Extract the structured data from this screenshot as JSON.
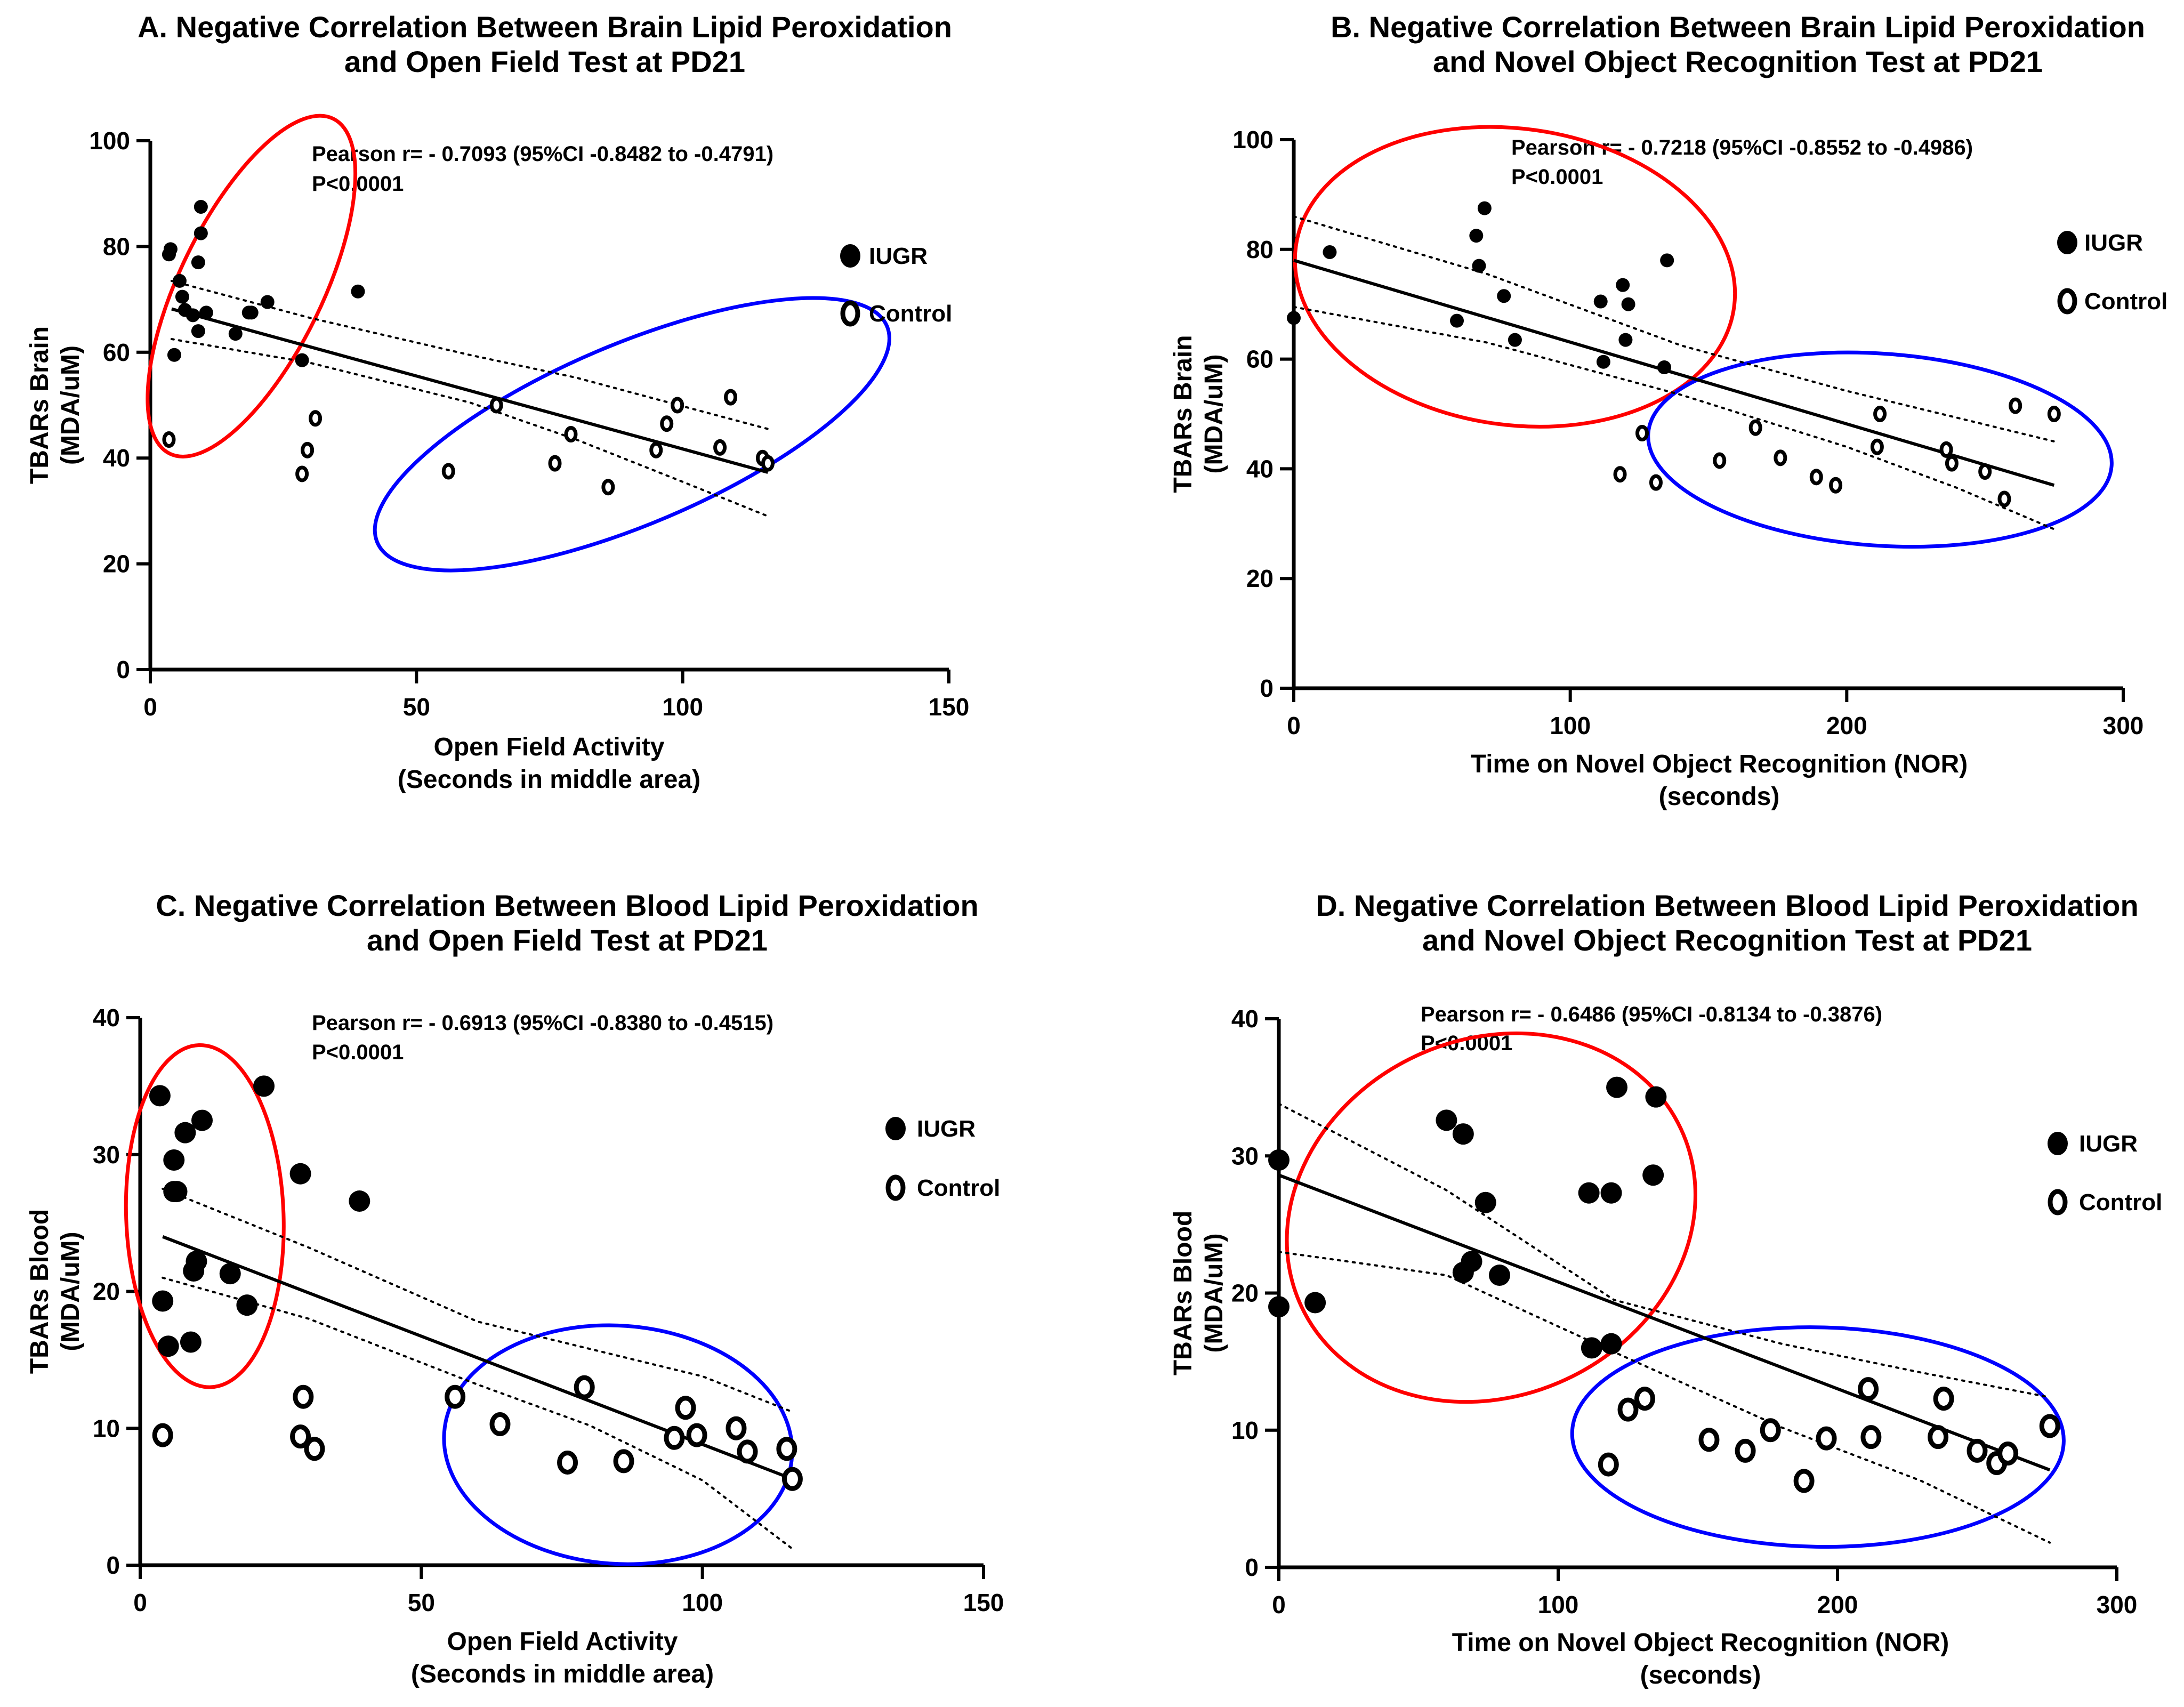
{
  "legend": {
    "iugr_label": "IUGR",
    "control_label": "Control"
  },
  "chart_data": [
    {
      "type": "scatter",
      "panel": "A",
      "title": [
        "A. Negative Correlation Between Brain Lipid Peroxidation",
        "and Open Field Test at PD21"
      ],
      "stats": [
        "Pearson r= - 0.7093 (95%CI -0.8482 to -0.4791)",
        "P<0.0001"
      ],
      "xlabel": [
        "Open Field Activity",
        "(Seconds in middle area)"
      ],
      "ylabel": [
        "TBARs Brain",
        "(MDA/uM)"
      ],
      "xlim": [
        0,
        150
      ],
      "ylim": [
        0,
        100
      ],
      "xticks": [
        0,
        50,
        100,
        150
      ],
      "yticks": [
        0,
        20,
        40,
        60,
        80,
        100
      ],
      "grid": false,
      "legend_position": "right",
      "series": [
        {
          "name": "IUGR",
          "marker": "filled",
          "size": "small",
          "points": [
            [
              3.5,
              78.5
            ],
            [
              3.8,
              79.5
            ],
            [
              4.5,
              59.5
            ],
            [
              5.5,
              73.5
            ],
            [
              6,
              70.5
            ],
            [
              6.5,
              68
            ],
            [
              8,
              67
            ],
            [
              9,
              77
            ],
            [
              9.5,
              87.5
            ],
            [
              9.5,
              82.5
            ],
            [
              9,
              64
            ],
            [
              10.5,
              67.5
            ],
            [
              16,
              63.5
            ],
            [
              18.5,
              67.5
            ],
            [
              19,
              67.5
            ],
            [
              22,
              69.5
            ],
            [
              28.5,
              58.5
            ],
            [
              39,
              71.5
            ]
          ]
        },
        {
          "name": "Control",
          "marker": "open",
          "size": "small",
          "points": [
            [
              3.5,
              43.5
            ],
            [
              28.5,
              37
            ],
            [
              29.5,
              41.5
            ],
            [
              31,
              47.5
            ],
            [
              56,
              37.5
            ],
            [
              65,
              50
            ],
            [
              76,
              39
            ],
            [
              79,
              44.5
            ],
            [
              86,
              34.5
            ],
            [
              95,
              41.5
            ],
            [
              97,
              46.5
            ],
            [
              99,
              50
            ],
            [
              107,
              42
            ],
            [
              109,
              51.5
            ],
            [
              115,
              40
            ],
            [
              116,
              39
            ]
          ]
        }
      ],
      "fit": {
        "x": [
          4,
          116
        ],
        "y": [
          68.2,
          37.3
        ]
      },
      "ci_upper": {
        "x": [
          4,
          30,
          60,
          80,
          100,
          116
        ],
        "y": [
          73.5,
          66.5,
          59.5,
          55.2,
          49.8,
          45.5
        ]
      },
      "ci_lower": {
        "x": [
          4,
          30,
          60,
          80,
          100,
          116
        ],
        "y": [
          62.5,
          58,
          50.5,
          43.5,
          35.5,
          29
        ]
      },
      "ellipses": [
        {
          "group": "IUGR",
          "color": "#ff0000",
          "cx": 19,
          "cy": 72.5,
          "rx": 35,
          "ry": 13.5,
          "angle_deg": 64
        },
        {
          "group": "Control",
          "color": "#0000ff",
          "cx": 90.5,
          "cy": 44.5,
          "rx": 52,
          "ry": 17,
          "angle_deg": 23
        }
      ]
    },
    {
      "type": "scatter",
      "panel": "B",
      "title": [
        "B. Negative Correlation Between Brain Lipid Peroxidation",
        "and Novel Object Recognition Test at PD21"
      ],
      "stats": [
        "Pearson r= - 0.7218 (95%CI -0.8552 to -0.4986)",
        "P<0.0001"
      ],
      "xlabel": [
        "Time on Novel Object Recognition (NOR)",
        "(seconds)"
      ],
      "ylabel": [
        "TBARs Brain",
        "(MDA/uM)"
      ],
      "xlim": [
        0,
        300
      ],
      "ylim": [
        0,
        100
      ],
      "xticks": [
        0,
        100,
        200,
        300
      ],
      "yticks": [
        0,
        20,
        40,
        60,
        80,
        100
      ],
      "grid": false,
      "legend_position": "right",
      "series": [
        {
          "name": "IUGR",
          "marker": "filled",
          "size": "small",
          "points": [
            [
              0,
              67.5
            ],
            [
              13,
              79.5
            ],
            [
              59,
              67
            ],
            [
              66,
              82.5
            ],
            [
              67,
              77
            ],
            [
              69,
              87.5
            ],
            [
              76,
              71.5
            ],
            [
              80,
              63.5
            ],
            [
              111,
              70.5
            ],
            [
              112,
              59.5
            ],
            [
              119,
              73.5
            ],
            [
              120,
              63.5
            ],
            [
              121,
              70
            ],
            [
              134,
              58.5
            ],
            [
              135,
              78
            ]
          ]
        },
        {
          "name": "Control",
          "marker": "open",
          "size": "small",
          "points": [
            [
              118,
              39
            ],
            [
              126,
              46.5
            ],
            [
              131,
              37.5
            ],
            [
              154,
              41.5
            ],
            [
              167,
              47.5
            ],
            [
              176,
              42
            ],
            [
              189,
              38.5
            ],
            [
              196,
              37
            ],
            [
              211,
              44
            ],
            [
              212,
              50
            ],
            [
              236,
              43.5
            ],
            [
              238,
              41
            ],
            [
              250,
              39.5
            ],
            [
              257,
              34.5
            ],
            [
              261,
              51.5
            ],
            [
              275,
              50
            ]
          ]
        }
      ],
      "fit": {
        "x": [
          0,
          275
        ],
        "y": [
          78,
          37
        ]
      },
      "ci_upper": {
        "x": [
          0,
          70,
          140,
          200,
          240,
          275
        ],
        "y": [
          86,
          75.5,
          62.5,
          54.2,
          49.3,
          45
        ]
      },
      "ci_lower": {
        "x": [
          0,
          70,
          140,
          200,
          240,
          275
        ],
        "y": [
          69.5,
          63,
          53.5,
          44,
          36.5,
          29
        ]
      },
      "ellipses": [
        {
          "group": "IUGR",
          "color": "#ff0000",
          "cx": 80,
          "cy": 75,
          "rx": 80,
          "ry": 27,
          "angle_deg": -8
        },
        {
          "group": "Control",
          "color": "#0000ff",
          "cx": 212,
          "cy": 43.5,
          "rx": 84,
          "ry": 17.5,
          "angle_deg": -4
        }
      ]
    },
    {
      "type": "scatter",
      "panel": "C",
      "title": [
        "C. Negative Correlation Between Blood Lipid Peroxidation",
        "and Open  Field Test at PD21"
      ],
      "stats": [
        "Pearson r= - 0.6913 (95%CI -0.8380 to -0.4515)",
        "P<0.0001"
      ],
      "xlabel": [
        "Open Field Activity",
        "(Seconds in middle area)"
      ],
      "ylabel": [
        "TBARs Blood",
        "(MDA/uM)"
      ],
      "xlim": [
        0,
        150
      ],
      "ylim": [
        0,
        40
      ],
      "xticks": [
        0,
        50,
        100,
        150
      ],
      "yticks": [
        0,
        10,
        20,
        30,
        40
      ],
      "grid": false,
      "legend_position": "right",
      "series": [
        {
          "name": "IUGR",
          "marker": "filled",
          "size": "large",
          "points": [
            [
              3.5,
              34.3
            ],
            [
              4,
              19.3
            ],
            [
              5,
              16
            ],
            [
              6,
              27.3
            ],
            [
              6,
              29.6
            ],
            [
              6.5,
              27.3
            ],
            [
              8,
              31.6
            ],
            [
              9,
              16.3
            ],
            [
              9.5,
              21.5
            ],
            [
              10,
              22.2
            ],
            [
              11,
              32.5
            ],
            [
              16,
              21.3
            ],
            [
              19,
              19
            ],
            [
              22,
              35
            ],
            [
              28.5,
              28.6
            ],
            [
              39,
              26.6
            ]
          ]
        },
        {
          "name": "Control",
          "marker": "open",
          "size": "large",
          "points": [
            [
              4,
              9.5
            ],
            [
              28.5,
              9.4
            ],
            [
              29,
              12.3
            ],
            [
              31,
              8.5
            ],
            [
              56,
              12.3
            ],
            [
              64,
              10.3
            ],
            [
              76,
              7.5
            ],
            [
              79,
              13
            ],
            [
              86,
              7.6
            ],
            [
              95,
              9.3
            ],
            [
              97,
              11.5
            ],
            [
              99,
              9.5
            ],
            [
              106,
              10
            ],
            [
              108,
              8.3
            ],
            [
              115,
              8.5
            ],
            [
              116,
              6.3
            ]
          ]
        }
      ],
      "fit": {
        "x": [
          4,
          116
        ],
        "y": [
          24,
          6.3
        ]
      },
      "ci_upper": {
        "x": [
          4,
          30,
          60,
          80,
          100,
          116
        ],
        "y": [
          27.5,
          23.2,
          17.8,
          15.8,
          13.8,
          11.2
        ]
      },
      "ci_lower": {
        "x": [
          4,
          30,
          60,
          80,
          100,
          116
        ],
        "y": [
          21,
          18,
          13.2,
          10.2,
          6.2,
          1.2
        ]
      },
      "ellipses": [
        {
          "group": "IUGR",
          "color": "#ff0000",
          "cx": 11.5,
          "cy": 25.5,
          "rx": 14,
          "ry": 12.5,
          "angle_deg": 2
        },
        {
          "group": "Control",
          "color": "#0000ff",
          "cx": 85,
          "cy": 8.8,
          "rx": 31,
          "ry": 8.7,
          "angle_deg": -4
        }
      ]
    },
    {
      "type": "scatter",
      "panel": "D",
      "title": [
        "D. Negative Correlation Between Blood Lipid Peroxidation",
        "and Novel Object Recognition Test at PD21"
      ],
      "stats": [
        "Pearson r= - 0.6486 (95%CI -0.8134 to -0.3876)",
        "P<0.0001"
      ],
      "xlabel": [
        "Time on Novel Object Recognition (NOR)",
        "(seconds)"
      ],
      "ylabel": [
        "TBARs Blood",
        "(MDA/uM)"
      ],
      "xlim": [
        0,
        300
      ],
      "ylim": [
        0,
        40
      ],
      "xticks": [
        0,
        100,
        200,
        300
      ],
      "yticks": [
        0,
        10,
        20,
        30,
        40
      ],
      "grid": false,
      "legend_position": "right",
      "series": [
        {
          "name": "IUGR",
          "marker": "filled",
          "size": "large",
          "points": [
            [
              0,
              29.7
            ],
            [
              0,
              19
            ],
            [
              13,
              19.3
            ],
            [
              60,
              32.6
            ],
            [
              66,
              21.5
            ],
            [
              66,
              31.6
            ],
            [
              69,
              22.3
            ],
            [
              74,
              26.6
            ],
            [
              79,
              21.3
            ],
            [
              111,
              27.3
            ],
            [
              112,
              16
            ],
            [
              119,
              16.3
            ],
            [
              119,
              27.3
            ],
            [
              121,
              35
            ],
            [
              134,
              28.6
            ],
            [
              135,
              34.3
            ]
          ]
        },
        {
          "name": "Control",
          "marker": "open",
          "size": "large",
          "points": [
            [
              118,
              7.5
            ],
            [
              125,
              11.5
            ],
            [
              131,
              12.3
            ],
            [
              154,
              9.3
            ],
            [
              167,
              8.5
            ],
            [
              176,
              10
            ],
            [
              188,
              6.3
            ],
            [
              196,
              9.4
            ],
            [
              211,
              13
            ],
            [
              212,
              9.5
            ],
            [
              236,
              9.5
            ],
            [
              238,
              12.3
            ],
            [
              250,
              8.5
            ],
            [
              257,
              7.6
            ],
            [
              261,
              8.3
            ],
            [
              276,
              10.3
            ]
          ]
        }
      ],
      "fit": {
        "x": [
          0,
          276
        ],
        "y": [
          28.6,
          7.1
        ]
      },
      "ci_upper": {
        "x": [
          0,
          60,
          120,
          180,
          230,
          276
        ],
        "y": [
          33.8,
          27.5,
          19.5,
          16.3,
          14.2,
          12.4
        ]
      },
      "ci_lower": {
        "x": [
          0,
          60,
          120,
          180,
          230,
          276
        ],
        "y": [
          23,
          21.3,
          15.7,
          10.2,
          6.3,
          1.8
        ]
      },
      "ellipses": [
        {
          "group": "IUGR",
          "color": "#ff0000",
          "cx": 76,
          "cy": 25.5,
          "rx": 75,
          "ry": 13,
          "angle_deg": 25
        },
        {
          "group": "Control",
          "color": "#0000ff",
          "cx": 193,
          "cy": 9.5,
          "rx": 88,
          "ry": 8,
          "angle_deg": -1
        }
      ]
    }
  ]
}
